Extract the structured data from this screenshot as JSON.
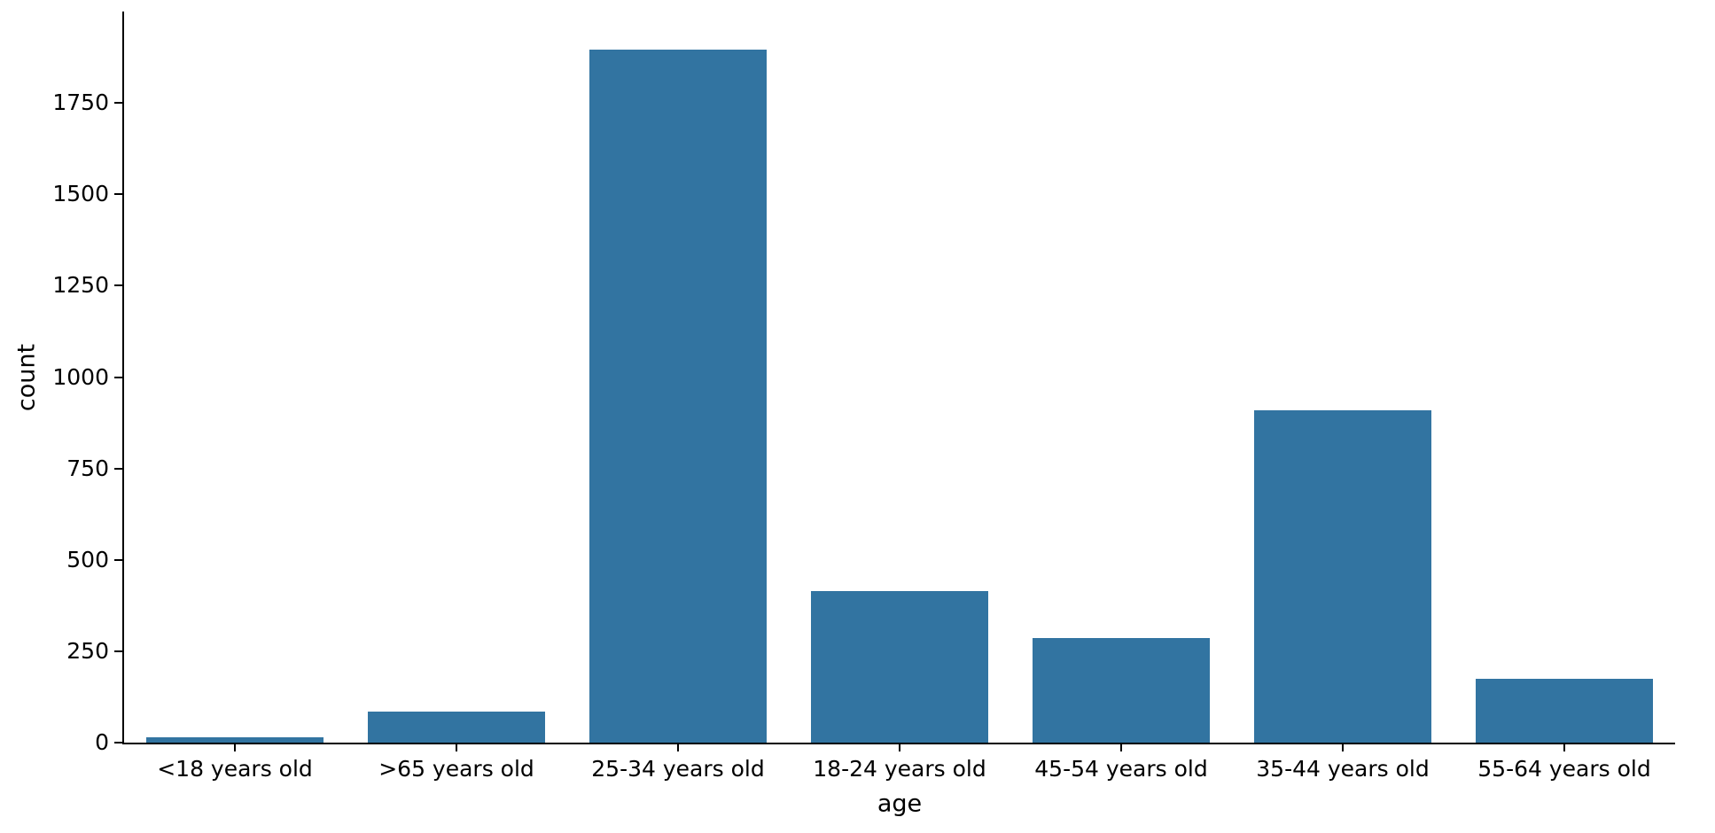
{
  "chart_data": {
    "type": "bar",
    "xlabel": "age",
    "ylabel": "count",
    "categories": [
      "<18 years old",
      ">65 years old",
      "25-34 years old",
      "18-24 years old",
      "45-54 years old",
      "35-44 years old",
      "55-64 years old"
    ],
    "values": [
      15,
      85,
      1895,
      415,
      285,
      910,
      175
    ],
    "yticks": [
      0,
      250,
      500,
      750,
      1000,
      1250,
      1500,
      1750
    ],
    "ylim": [
      0,
      2000
    ],
    "bar_color": "#3274a1",
    "axis_color": "#000000",
    "grid": false,
    "legend": false
  }
}
